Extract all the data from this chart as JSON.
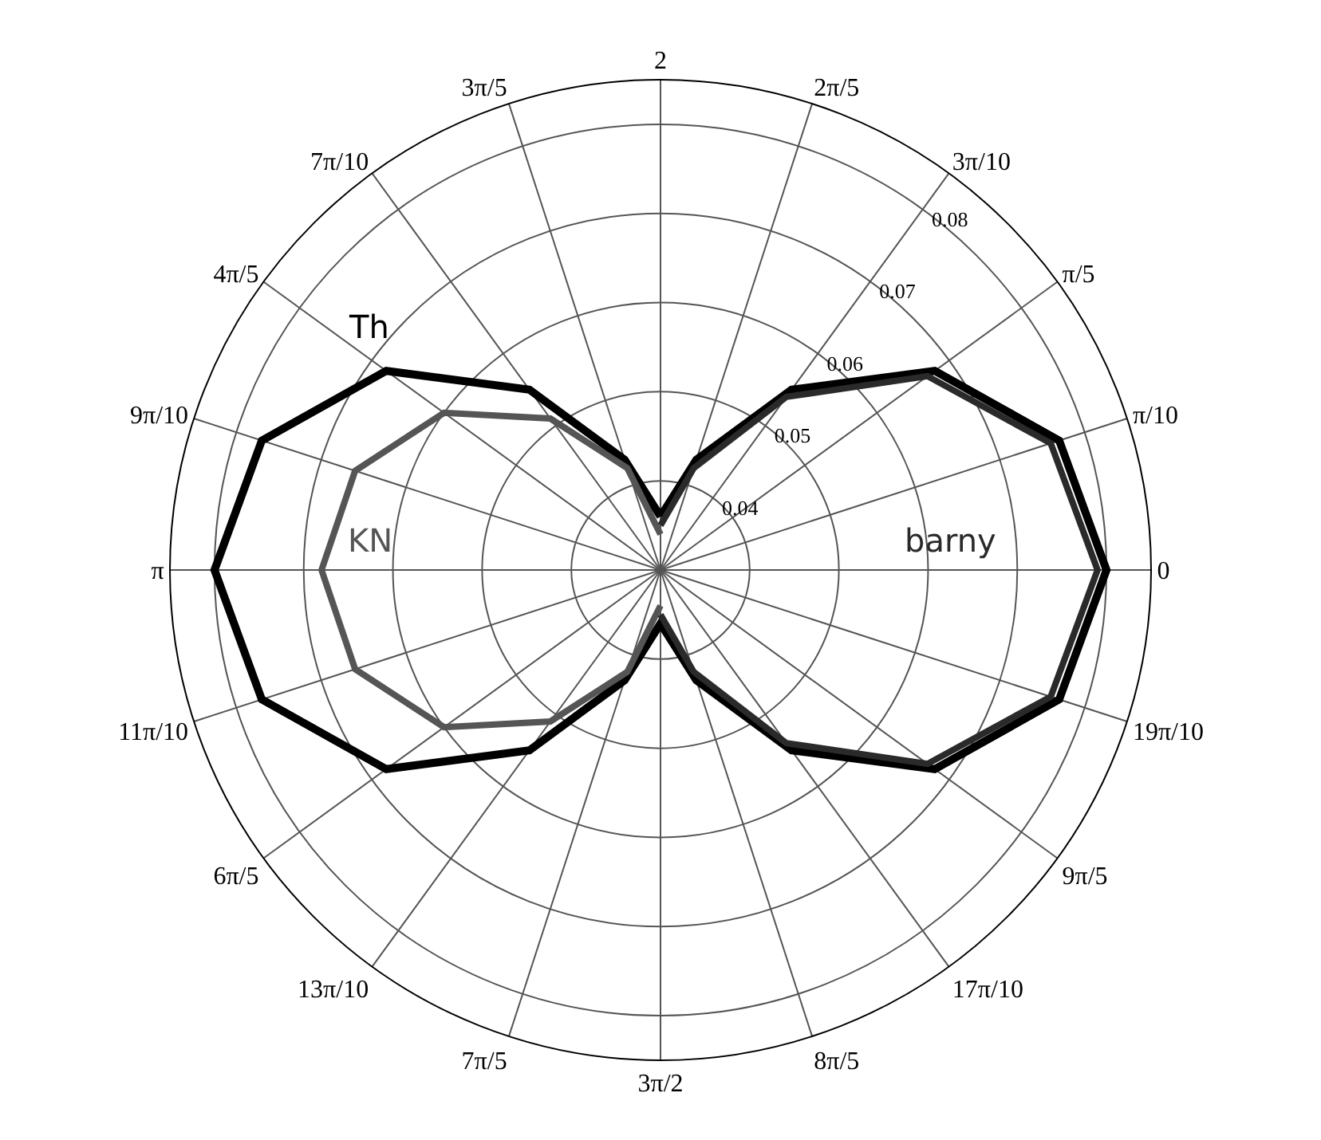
{
  "chart_data": {
    "type": "radar",
    "categories": [
      "2",
      "2π/5",
      "3π/10",
      "π/5",
      "π/10",
      "0",
      "19π/10",
      "9π/5",
      "17π/10",
      "8π/5",
      "3π/2",
      "7π/5",
      "13π/10",
      "6π/5",
      "11π/10",
      "π",
      "9π/10",
      "4π/5",
      "7π/10",
      "3π/5"
    ],
    "series": [
      {
        "name": "Th",
        "color": "#000000",
        "values": [
          0.036,
          0.043,
          0.055,
          0.068,
          0.077,
          0.08,
          0.077,
          0.068,
          0.055,
          0.043,
          0.036,
          0.043,
          0.055,
          0.068,
          0.077,
          0.08,
          0.077,
          0.068,
          0.055,
          0.043
        ]
      },
      {
        "name": "KN",
        "color": "#555555",
        "values": [
          0.034,
          null,
          null,
          null,
          null,
          null,
          null,
          null,
          null,
          null,
          0.034,
          0.042,
          0.051,
          0.06,
          0.066,
          0.068,
          0.066,
          0.06,
          0.051,
          0.042
        ]
      },
      {
        "name": "barny",
        "color": "#2a2a2a",
        "values": [
          0.035,
          0.042,
          0.054,
          0.067,
          0.076,
          0.079,
          0.076,
          0.067,
          0.054,
          0.042,
          0.035,
          null,
          null,
          null,
          null,
          null,
          null,
          null,
          null,
          null
        ]
      }
    ],
    "ylim": [
      0.03,
      0.085
    ],
    "yticks": [
      0.04,
      0.05,
      0.06,
      0.07,
      0.08
    ],
    "grid": true
  }
}
